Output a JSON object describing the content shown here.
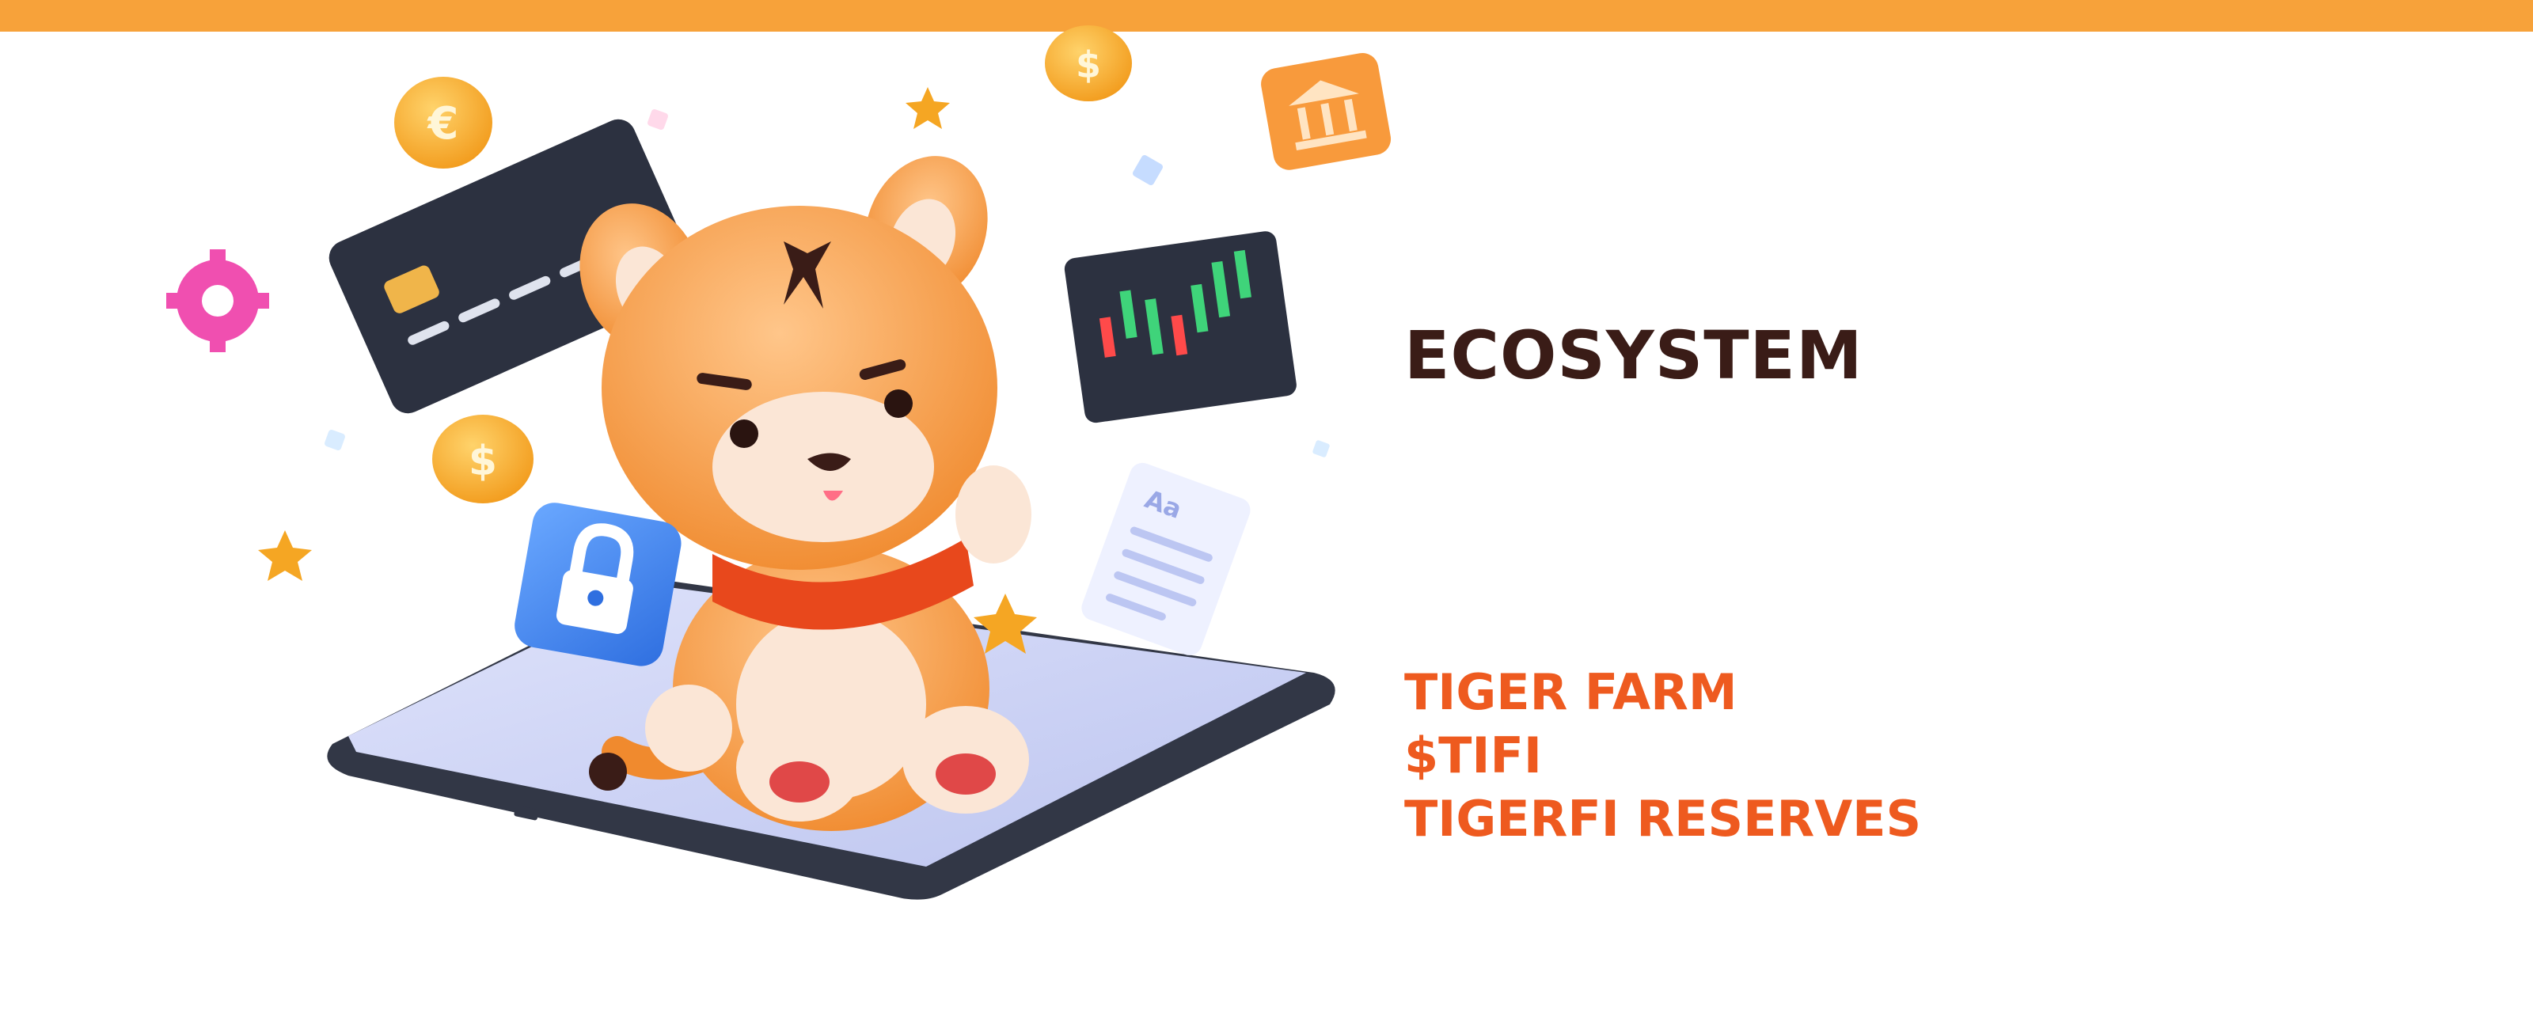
{
  "header": {
    "accent_color": "#f7a23a"
  },
  "section": {
    "title": "ECOSYSTEM",
    "title_color": "#3a1c17",
    "link_color": "#ee5a1f",
    "links": [
      {
        "label": "TIGER FARM"
      },
      {
        "label": "$TIFI"
      },
      {
        "label": "TIGERFI RESERVES"
      }
    ]
  },
  "illustration": {
    "icons": [
      "tiger-mascot",
      "credit-card-icon",
      "candlestick-chart-icon",
      "padlock-icon",
      "document-icon",
      "bank-icon",
      "coin-icon",
      "gear-icon",
      "star-icon",
      "tablet-device"
    ],
    "document_icon_text": "Aa"
  }
}
